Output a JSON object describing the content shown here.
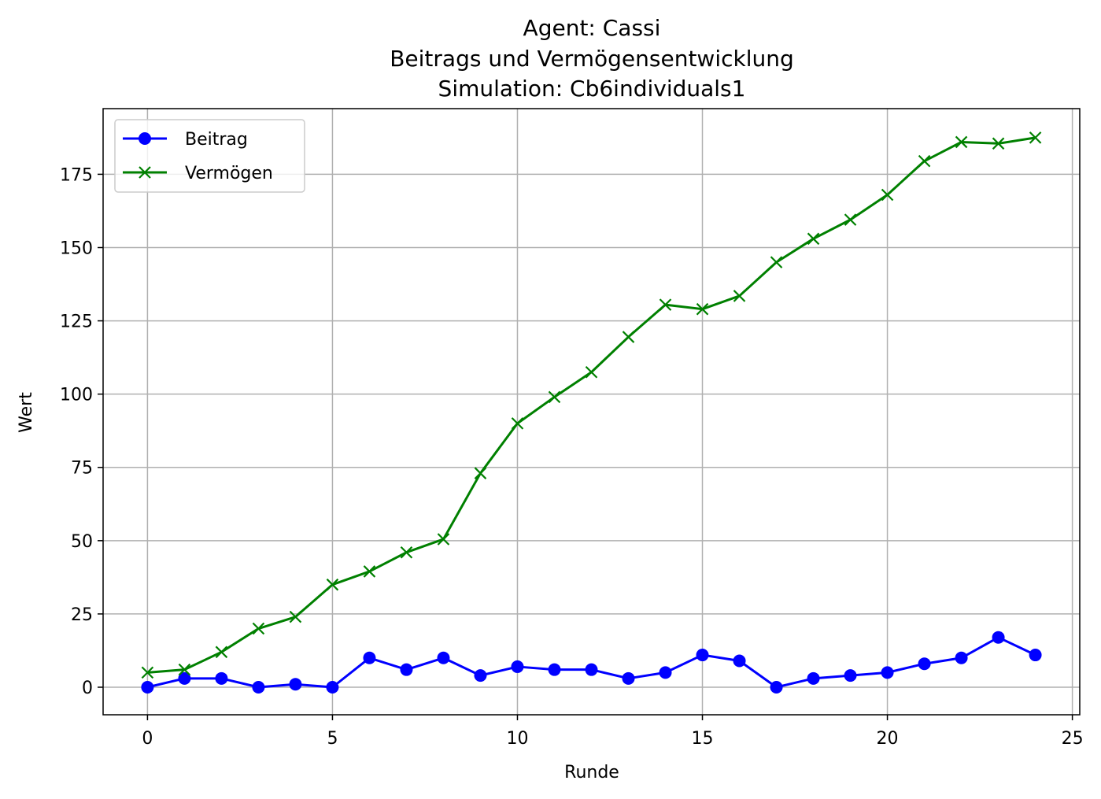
{
  "chart_data": {
    "type": "line",
    "title": [
      "Agent: Cassi",
      "Beitrags und Vermögensentwicklung",
      "Simulation: Cb6individuals1"
    ],
    "xlabel": "Runde",
    "ylabel": "Wert",
    "xlim": [
      -1.2,
      25.2
    ],
    "ylim": [
      -9.4,
      197.4
    ],
    "xticks": [
      0,
      5,
      10,
      15,
      20,
      25
    ],
    "yticks": [
      0,
      25,
      50,
      75,
      100,
      125,
      150,
      175
    ],
    "grid": true,
    "legend_position": "top-left",
    "x": [
      0,
      1,
      2,
      3,
      4,
      5,
      6,
      7,
      8,
      9,
      10,
      11,
      12,
      13,
      14,
      15,
      16,
      17,
      18,
      19,
      20,
      21,
      22,
      23,
      24
    ],
    "series": [
      {
        "name": "Beitrag",
        "color": "#0000ff",
        "marker": "circle",
        "values": [
          0,
          3,
          3,
          0,
          1,
          0,
          10,
          6,
          10,
          4,
          7,
          6,
          6,
          3,
          5,
          11,
          9,
          0,
          3,
          4,
          5,
          8,
          10,
          17,
          11
        ]
      },
      {
        "name": "Vermögen",
        "color": "#008000",
        "marker": "x",
        "values": [
          5,
          6,
          12,
          20,
          24,
          35,
          39.5,
          46,
          50.5,
          73,
          90,
          99,
          107.5,
          119.5,
          130.5,
          129,
          133.5,
          145,
          153,
          159.5,
          168,
          179.5,
          186,
          185.5,
          187.5
        ]
      }
    ]
  }
}
